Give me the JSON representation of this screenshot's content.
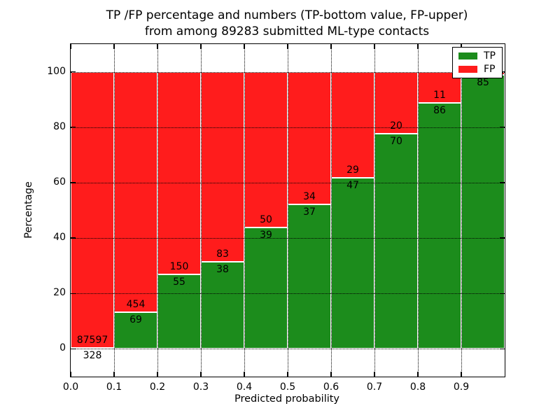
{
  "figure": {
    "title_line1": "TP /FP percentage and numbers (TP-bottom value, FP-upper)",
    "title_line2": "from among 89283 submitted ML-type contacts",
    "xlabel": "Predicted probability",
    "ylabel": "Percentage"
  },
  "legend": {
    "items": [
      {
        "label": "TP",
        "color": "#1c8c1c"
      },
      {
        "label": "FP",
        "color": "#ff1c1c"
      }
    ]
  },
  "chart_data": {
    "type": "bar",
    "stacked": true,
    "normalized_to_percent": true,
    "title": "TP /FP percentage and numbers (TP-bottom value, FP-upper) from among 89283 submitted ML-type contacts",
    "xlabel": "Predicted probability",
    "ylabel": "Percentage",
    "total_submitted": 89283,
    "categories": [
      "0.0-0.1",
      "0.1-0.2",
      "0.2-0.3",
      "0.3-0.4",
      "0.4-0.5",
      "0.5-0.6",
      "0.6-0.7",
      "0.7-0.8",
      "0.8-0.9",
      "0.9-1.0"
    ],
    "xticks": [
      "0.0",
      "0.1",
      "0.2",
      "0.3",
      "0.4",
      "0.5",
      "0.6",
      "0.7",
      "0.8",
      "0.9"
    ],
    "yticks": [
      0,
      20,
      40,
      60,
      80,
      100
    ],
    "xlim": [
      0.0,
      1.0
    ],
    "ylim": [
      -10,
      110
    ],
    "grid": true,
    "legend_position": "upper right",
    "series": [
      {
        "name": "TP",
        "color": "#1c8c1c",
        "counts": [
          328,
          69,
          55,
          38,
          39,
          37,
          47,
          70,
          86,
          85
        ]
      },
      {
        "name": "FP",
        "color": "#ff1c1c",
        "counts": [
          87597,
          454,
          150,
          83,
          50,
          34,
          29,
          20,
          11,
          1
        ],
        "last_label_hidden_by_legend": true
      }
    ],
    "tp_percent": [
      0.37,
      13.19,
      26.83,
      31.4,
      43.82,
      52.11,
      61.84,
      77.78,
      88.66,
      98.84
    ]
  }
}
